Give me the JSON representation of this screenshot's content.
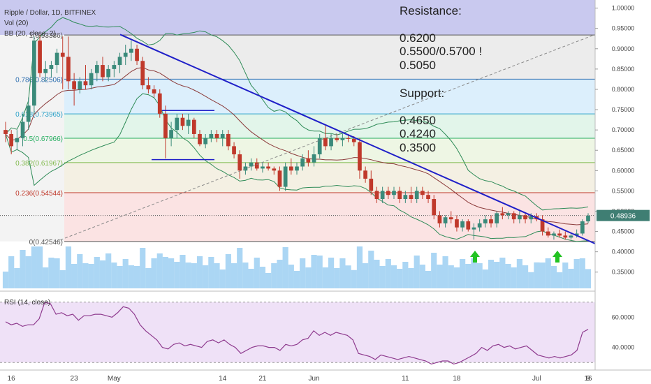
{
  "header": {
    "title": "Ripple / Dollar, 1D, BITFINEX",
    "indicator_vol": "Vol (20)",
    "indicator_bb": "BB (20, close, 2)",
    "rsi_label": "RSI (14, close)"
  },
  "annotations": {
    "resistance_title": "Resistance:",
    "resistance_levels": [
      "0.6200",
      "0.5500/0.5700 !",
      "0.5050"
    ],
    "support_title": "Support:",
    "support_levels": [
      "0.4650",
      "0.4240",
      "0.3500"
    ]
  },
  "colors": {
    "bull": "#3a8a7a",
    "bear": "#c0392b",
    "trendline": "#1f1fc8",
    "bb_mid": "#8b3a3a",
    "bb_band": "#2e8b57",
    "rsi_line": "#8e3a8e",
    "arrow": "#22c322",
    "volume": "#87c4ef"
  },
  "chart_data": [
    {
      "type": "candlestick",
      "title": "Ripple / Dollar, 1D, BITFINEX",
      "x_tick_labels": [
        "16",
        "23",
        "May",
        "14",
        "21",
        "Jun",
        "11",
        "18",
        "Jul",
        "9",
        "16"
      ],
      "y_tick_labels": [
        "1.00000",
        "0.95000",
        "0.90000",
        "0.85000",
        "0.80000",
        "0.75000",
        "0.70000",
        "0.65000",
        "0.60000",
        "0.55000",
        "0.50000",
        "0.45000",
        "0.40000",
        "0.35000"
      ],
      "ylim": [
        0.31,
        1.02
      ],
      "last_price": "0.48936",
      "fibonacci": [
        {
          "label": "1(0.93386)",
          "value": 0.93386
        },
        {
          "label": "0.786(0.82506)",
          "value": 0.82506
        },
        {
          "label": "0.618(0.73965)",
          "value": 0.73965
        },
        {
          "label": "0.5(0.67966)",
          "value": 0.67966
        },
        {
          "label": "0.382(0.61967)",
          "value": 0.61967
        },
        {
          "label": "0.236(0.54544)",
          "value": 0.54544
        },
        {
          "label": "0(0.42546)",
          "value": 0.42546
        }
      ],
      "candles": [
        {
          "o": 0.7,
          "h": 0.72,
          "l": 0.67,
          "c": 0.69
        },
        {
          "o": 0.69,
          "h": 0.7,
          "l": 0.64,
          "c": 0.66
        },
        {
          "o": 0.67,
          "h": 0.7,
          "l": 0.65,
          "c": 0.68
        },
        {
          "o": 0.68,
          "h": 0.74,
          "l": 0.66,
          "c": 0.72
        },
        {
          "o": 0.72,
          "h": 0.78,
          "l": 0.7,
          "c": 0.76
        },
        {
          "o": 0.76,
          "h": 0.93,
          "l": 0.74,
          "c": 0.92
        },
        {
          "o": 0.92,
          "h": 0.935,
          "l": 0.83,
          "c": 0.84
        },
        {
          "o": 0.84,
          "h": 0.87,
          "l": 0.82,
          "c": 0.85
        },
        {
          "o": 0.85,
          "h": 0.87,
          "l": 0.83,
          "c": 0.86
        },
        {
          "o": 0.86,
          "h": 0.9,
          "l": 0.84,
          "c": 0.89
        },
        {
          "o": 0.89,
          "h": 0.93,
          "l": 0.8,
          "c": 0.88
        },
        {
          "o": 0.88,
          "h": 0.93,
          "l": 0.8,
          "c": 0.82
        },
        {
          "o": 0.82,
          "h": 0.84,
          "l": 0.76,
          "c": 0.8
        },
        {
          "o": 0.8,
          "h": 0.83,
          "l": 0.79,
          "c": 0.82
        },
        {
          "o": 0.82,
          "h": 0.86,
          "l": 0.8,
          "c": 0.81
        },
        {
          "o": 0.81,
          "h": 0.85,
          "l": 0.8,
          "c": 0.84
        },
        {
          "o": 0.84,
          "h": 0.87,
          "l": 0.82,
          "c": 0.86
        },
        {
          "o": 0.86,
          "h": 0.88,
          "l": 0.82,
          "c": 0.83
        },
        {
          "o": 0.83,
          "h": 0.86,
          "l": 0.82,
          "c": 0.85
        },
        {
          "o": 0.85,
          "h": 0.87,
          "l": 0.83,
          "c": 0.86
        },
        {
          "o": 0.86,
          "h": 0.89,
          "l": 0.84,
          "c": 0.88
        },
        {
          "o": 0.88,
          "h": 0.91,
          "l": 0.86,
          "c": 0.89
        },
        {
          "o": 0.89,
          "h": 0.92,
          "l": 0.87,
          "c": 0.9
        },
        {
          "o": 0.9,
          "h": 0.91,
          "l": 0.86,
          "c": 0.87
        },
        {
          "o": 0.87,
          "h": 0.88,
          "l": 0.8,
          "c": 0.81
        },
        {
          "o": 0.81,
          "h": 0.83,
          "l": 0.79,
          "c": 0.8
        },
        {
          "o": 0.8,
          "h": 0.81,
          "l": 0.78,
          "c": 0.79
        },
        {
          "o": 0.79,
          "h": 0.8,
          "l": 0.73,
          "c": 0.74
        },
        {
          "o": 0.74,
          "h": 0.76,
          "l": 0.63,
          "c": 0.68
        },
        {
          "o": 0.68,
          "h": 0.72,
          "l": 0.66,
          "c": 0.7
        },
        {
          "o": 0.7,
          "h": 0.74,
          "l": 0.68,
          "c": 0.73
        },
        {
          "o": 0.73,
          "h": 0.74,
          "l": 0.7,
          "c": 0.71
        },
        {
          "o": 0.71,
          "h": 0.74,
          "l": 0.69,
          "c": 0.725
        },
        {
          "o": 0.725,
          "h": 0.73,
          "l": 0.68,
          "c": 0.69
        },
        {
          "o": 0.69,
          "h": 0.7,
          "l": 0.66,
          "c": 0.665
        },
        {
          "o": 0.665,
          "h": 0.69,
          "l": 0.655,
          "c": 0.68
        },
        {
          "o": 0.68,
          "h": 0.7,
          "l": 0.67,
          "c": 0.69
        },
        {
          "o": 0.69,
          "h": 0.7,
          "l": 0.67,
          "c": 0.68
        },
        {
          "o": 0.68,
          "h": 0.7,
          "l": 0.66,
          "c": 0.69
        },
        {
          "o": 0.69,
          "h": 0.7,
          "l": 0.65,
          "c": 0.66
        },
        {
          "o": 0.66,
          "h": 0.67,
          "l": 0.63,
          "c": 0.64
        },
        {
          "o": 0.64,
          "h": 0.65,
          "l": 0.58,
          "c": 0.6
        },
        {
          "o": 0.6,
          "h": 0.62,
          "l": 0.59,
          "c": 0.61
        },
        {
          "o": 0.61,
          "h": 0.63,
          "l": 0.6,
          "c": 0.62
        },
        {
          "o": 0.62,
          "h": 0.63,
          "l": 0.6,
          "c": 0.605
        },
        {
          "o": 0.605,
          "h": 0.62,
          "l": 0.595,
          "c": 0.61
        },
        {
          "o": 0.61,
          "h": 0.62,
          "l": 0.6,
          "c": 0.605
        },
        {
          "o": 0.605,
          "h": 0.61,
          "l": 0.59,
          "c": 0.6
        },
        {
          "o": 0.6,
          "h": 0.61,
          "l": 0.55,
          "c": 0.56
        },
        {
          "o": 0.56,
          "h": 0.62,
          "l": 0.55,
          "c": 0.61
        },
        {
          "o": 0.61,
          "h": 0.63,
          "l": 0.59,
          "c": 0.6
        },
        {
          "o": 0.6,
          "h": 0.62,
          "l": 0.59,
          "c": 0.61
        },
        {
          "o": 0.61,
          "h": 0.64,
          "l": 0.6,
          "c": 0.63
        },
        {
          "o": 0.63,
          "h": 0.65,
          "l": 0.61,
          "c": 0.62
        },
        {
          "o": 0.62,
          "h": 0.66,
          "l": 0.61,
          "c": 0.64
        },
        {
          "o": 0.64,
          "h": 0.69,
          "l": 0.63,
          "c": 0.68
        },
        {
          "o": 0.68,
          "h": 0.71,
          "l": 0.65,
          "c": 0.66
        },
        {
          "o": 0.66,
          "h": 0.69,
          "l": 0.65,
          "c": 0.68
        },
        {
          "o": 0.68,
          "h": 0.69,
          "l": 0.67,
          "c": 0.675
        },
        {
          "o": 0.675,
          "h": 0.69,
          "l": 0.66,
          "c": 0.68
        },
        {
          "o": 0.68,
          "h": 0.69,
          "l": 0.67,
          "c": 0.678
        },
        {
          "o": 0.678,
          "h": 0.685,
          "l": 0.66,
          "c": 0.67
        },
        {
          "o": 0.67,
          "h": 0.68,
          "l": 0.58,
          "c": 0.6
        },
        {
          "o": 0.6,
          "h": 0.61,
          "l": 0.57,
          "c": 0.58
        },
        {
          "o": 0.58,
          "h": 0.6,
          "l": 0.54,
          "c": 0.55
        },
        {
          "o": 0.55,
          "h": 0.56,
          "l": 0.52,
          "c": 0.53
        },
        {
          "o": 0.53,
          "h": 0.56,
          "l": 0.52,
          "c": 0.55
        },
        {
          "o": 0.55,
          "h": 0.56,
          "l": 0.53,
          "c": 0.54
        },
        {
          "o": 0.54,
          "h": 0.56,
          "l": 0.53,
          "c": 0.55
        },
        {
          "o": 0.55,
          "h": 0.56,
          "l": 0.52,
          "c": 0.53
        },
        {
          "o": 0.53,
          "h": 0.55,
          "l": 0.52,
          "c": 0.54
        },
        {
          "o": 0.54,
          "h": 0.56,
          "l": 0.52,
          "c": 0.53
        },
        {
          "o": 0.53,
          "h": 0.56,
          "l": 0.52,
          "c": 0.55
        },
        {
          "o": 0.55,
          "h": 0.56,
          "l": 0.53,
          "c": 0.54
        },
        {
          "o": 0.54,
          "h": 0.55,
          "l": 0.52,
          "c": 0.53
        },
        {
          "o": 0.53,
          "h": 0.54,
          "l": 0.48,
          "c": 0.49
        },
        {
          "o": 0.49,
          "h": 0.5,
          "l": 0.46,
          "c": 0.47
        },
        {
          "o": 0.47,
          "h": 0.49,
          "l": 0.46,
          "c": 0.485
        },
        {
          "o": 0.485,
          "h": 0.5,
          "l": 0.47,
          "c": 0.48
        },
        {
          "o": 0.48,
          "h": 0.49,
          "l": 0.45,
          "c": 0.46
        },
        {
          "o": 0.46,
          "h": 0.48,
          "l": 0.45,
          "c": 0.475
        },
        {
          "o": 0.475,
          "h": 0.48,
          "l": 0.45,
          "c": 0.455
        },
        {
          "o": 0.455,
          "h": 0.47,
          "l": 0.43,
          "c": 0.46
        },
        {
          "o": 0.46,
          "h": 0.48,
          "l": 0.45,
          "c": 0.47
        },
        {
          "o": 0.47,
          "h": 0.49,
          "l": 0.46,
          "c": 0.48
        },
        {
          "o": 0.48,
          "h": 0.49,
          "l": 0.46,
          "c": 0.47
        },
        {
          "o": 0.47,
          "h": 0.5,
          "l": 0.46,
          "c": 0.495
        },
        {
          "o": 0.495,
          "h": 0.51,
          "l": 0.48,
          "c": 0.49
        },
        {
          "o": 0.49,
          "h": 0.5,
          "l": 0.48,
          "c": 0.495
        },
        {
          "o": 0.495,
          "h": 0.5,
          "l": 0.47,
          "c": 0.48
        },
        {
          "o": 0.48,
          "h": 0.5,
          "l": 0.47,
          "c": 0.49
        },
        {
          "o": 0.49,
          "h": 0.495,
          "l": 0.47,
          "c": 0.48
        },
        {
          "o": 0.48,
          "h": 0.495,
          "l": 0.47,
          "c": 0.488
        },
        {
          "o": 0.488,
          "h": 0.495,
          "l": 0.475,
          "c": 0.48
        },
        {
          "o": 0.48,
          "h": 0.49,
          "l": 0.44,
          "c": 0.45
        },
        {
          "o": 0.45,
          "h": 0.46,
          "l": 0.435,
          "c": 0.44
        },
        {
          "o": 0.44,
          "h": 0.45,
          "l": 0.43,
          "c": 0.445
        },
        {
          "o": 0.445,
          "h": 0.455,
          "l": 0.435,
          "c": 0.44
        },
        {
          "o": 0.44,
          "h": 0.45,
          "l": 0.43,
          "c": 0.435
        },
        {
          "o": 0.435,
          "h": 0.445,
          "l": 0.43,
          "c": 0.44
        },
        {
          "o": 0.44,
          "h": 0.455,
          "l": 0.435,
          "c": 0.445
        },
        {
          "o": 0.445,
          "h": 0.48,
          "l": 0.44,
          "c": 0.475
        },
        {
          "o": 0.475,
          "h": 0.495,
          "l": 0.47,
          "c": 0.489
        }
      ]
    },
    {
      "type": "line",
      "title": "RSI (14, close)",
      "y_tick_labels": [
        "60.0000",
        "40.0000"
      ],
      "ylim": [
        25,
        75
      ],
      "bands": [
        70,
        30
      ],
      "values": [
        57,
        55,
        56,
        54,
        55,
        55,
        59,
        70,
        69,
        62,
        63,
        61,
        62,
        58,
        61,
        61,
        62,
        62,
        61,
        60,
        63,
        67,
        66,
        62,
        55,
        51,
        48,
        45,
        40,
        39,
        42,
        43,
        41,
        42,
        41,
        40,
        44,
        45,
        43,
        45,
        42,
        40,
        36,
        38,
        40,
        41,
        41,
        40,
        40,
        38,
        42,
        41,
        42,
        45,
        46,
        51,
        48,
        50,
        48,
        50,
        49,
        48,
        45,
        36,
        35,
        34,
        32,
        35,
        34,
        33,
        32,
        33,
        34,
        33,
        32,
        31,
        29,
        30,
        31,
        31,
        29,
        30,
        32,
        34,
        36,
        40,
        38,
        41,
        42,
        40,
        41,
        39,
        40,
        41,
        38,
        35,
        34,
        33,
        34,
        33,
        34,
        35,
        38,
        50,
        52
      ]
    }
  ]
}
